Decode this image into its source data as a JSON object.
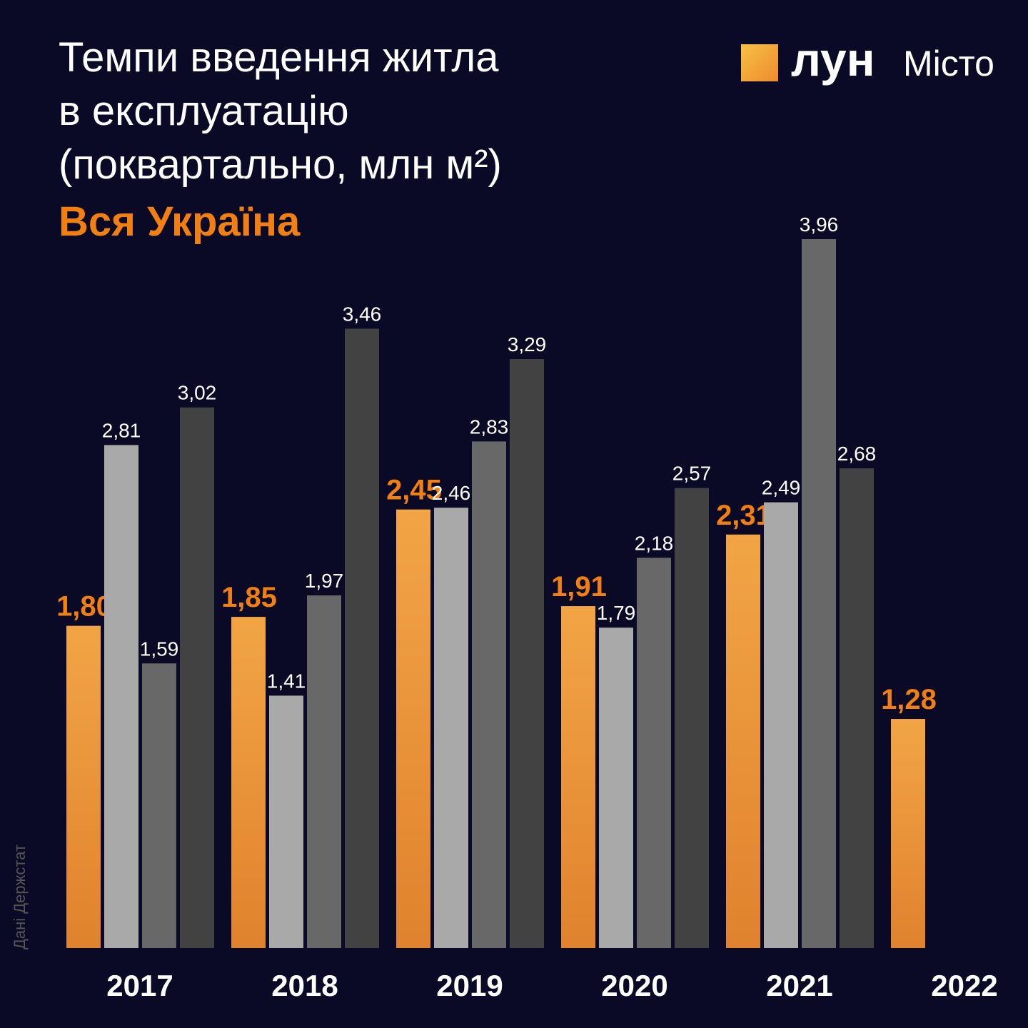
{
  "chart_data": {
    "type": "bar",
    "title": [
      "Темпи введення житла",
      "в експлуатацію",
      "(поквартально, млн м²)"
    ],
    "subtitle": "Вся Україна",
    "logo": [
      "лун",
      "Місто"
    ],
    "source": "Дані Держстат",
    "categories": [
      "2017",
      "2018",
      "2019",
      "2020",
      "2021",
      "2022"
    ],
    "ylim": [
      0,
      4
    ],
    "series": [
      {
        "color": "#ee9434",
        "values": [
          1.8,
          1.85,
          2.45,
          1.91,
          2.31,
          1.28
        ],
        "value_labels": [
          "1,80",
          "1,85",
          "2,45",
          "1,91",
          "2,31",
          "1,28"
        ]
      },
      {
        "color": "#a9a9a9",
        "values": [
          2.81,
          1.41,
          2.46,
          1.79,
          2.49,
          null
        ],
        "value_labels": [
          "2,81",
          "1,41",
          "2,46",
          "1,79",
          "2,49",
          null
        ]
      },
      {
        "color": "#686868",
        "values": [
          1.59,
          1.97,
          2.83,
          2.18,
          3.96,
          null
        ],
        "value_labels": [
          "1,59",
          "1,97",
          "2,83",
          "2,18",
          "3,96",
          null
        ]
      },
      {
        "color": "#424242",
        "values": [
          3.02,
          3.46,
          3.29,
          2.57,
          2.68,
          null
        ],
        "value_labels": [
          "3,02",
          "3,46",
          "3,29",
          "2,57",
          "2,68",
          null
        ]
      }
    ]
  }
}
